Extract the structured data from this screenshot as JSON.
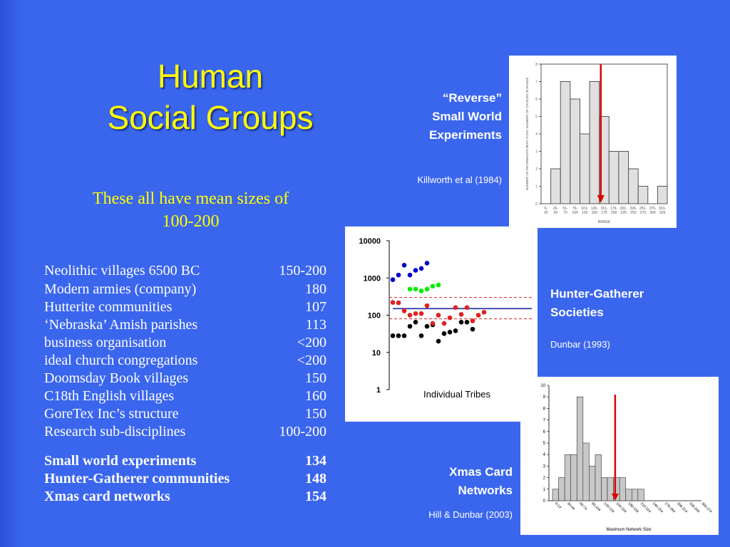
{
  "slide": {
    "title_line1": "Human",
    "title_line2": "Social Groups",
    "subtitle_line1": "These all have mean sizes of",
    "subtitle_line2": "100-200"
  },
  "groups": [
    {
      "name": "Neolithic villages 6500 BC",
      "size": "150-200"
    },
    {
      "name": "Modern armies (company)",
      "size": "180"
    },
    {
      "name": "Hutterite communities",
      "size": "107"
    },
    {
      "name": "‘Nebraska’ Amish parishes",
      "size": "113"
    },
    {
      "name": "business organisation",
      "size": "<200"
    },
    {
      "name": "ideal church congregations",
      "size": "<200"
    },
    {
      "name": "Doomsday Book villages",
      "size": "150"
    },
    {
      "name": "C18th English villages",
      "size": "160"
    },
    {
      "name": "GoreTex Inc’s structure",
      "size": "150"
    },
    {
      "name": "Research sub-disciplines",
      "size": "100-200"
    }
  ],
  "highlight_groups": [
    {
      "name": "Small world experiments",
      "size": "134"
    },
    {
      "name": "Hunter-Gatherer communities",
      "size": "148"
    },
    {
      "name": "Xmas card networks",
      "size": "154"
    }
  ],
  "labels": {
    "reverse_line1": "“Reverse”",
    "reverse_line2": "Small World",
    "reverse_line3": "Experiments",
    "reverse_cite": "Killworth et al (1984)",
    "hg_line1": "Hunter-Gatherer",
    "hg_line2": "Societies",
    "hg_cite": "Dunbar (1993)",
    "xmas_line1": "Xmas Card",
    "xmas_line2": "Networks",
    "xmas_cite": "Hill & Dunbar (2003)"
  },
  "colors": {
    "title": "#ffff00",
    "background": "#3a66ee",
    "arrow": "#dd0000"
  },
  "chart_data": [
    {
      "type": "bar",
      "categories": [
        "0-25",
        "26-50",
        "51-75",
        "76-100",
        "101-125",
        "126-150",
        "151-175",
        "176-200",
        "201-225",
        "226-250",
        "251-275",
        "276-300",
        "301-325"
      ],
      "category_labels": [
        "0-\n25",
        "26-\n50",
        "51-\n75",
        "76-\n100",
        "101-\n125",
        "126-\n150",
        "151-\n175",
        "176-\n200",
        "201-\n225",
        "226-\n250",
        "251-\n275",
        "276-\n300",
        "301-\n325"
      ],
      "values": [
        0,
        2,
        7,
        6,
        4,
        7,
        5,
        3,
        3,
        2,
        1,
        0,
        1
      ],
      "ylim": [
        0,
        8
      ],
      "yticks": [
        0,
        1,
        2,
        3,
        4,
        5,
        6,
        7,
        8
      ],
      "ylabel": "NUMBER OF INFORMANTS WITH TOTAL NUMBER OF CHOICES IN RANGE",
      "xlabel": "RANGE",
      "mean_marker_category": "151-175"
    },
    {
      "type": "scatter",
      "log_y": true,
      "yticks": [
        1,
        10,
        100,
        1000,
        10000
      ],
      "ylim": [
        1,
        10000
      ],
      "xlabel": "Individual Tribes",
      "mean": 150,
      "band": [
        80,
        300
      ],
      "series": [
        {
          "color": "#000000",
          "values": [
            28,
            28,
            28,
            50,
            65,
            28,
            50,
            55,
            20,
            32,
            35,
            38,
            65,
            65,
            42
          ]
        },
        {
          "color": "#e02020",
          "values": [
            220,
            215,
            130,
            100,
            110,
            110,
            180,
            60,
            100,
            60,
            85,
            160,
            105,
            160,
            70,
            100,
            120
          ]
        },
        {
          "color": "#00ee00",
          "values": [
            500,
            500,
            450,
            500,
            600,
            650
          ]
        },
        {
          "color": "#0000cc",
          "values": [
            900,
            1200,
            2200,
            1200,
            1600,
            1800,
            2500
          ]
        }
      ]
    },
    {
      "type": "bar",
      "categories": [
        "0-14",
        "15-29",
        "30-44",
        "45-59",
        "60-74",
        "75-89",
        "90-104",
        "105-119",
        "120-134",
        "135-149",
        "150-164",
        "165-179",
        "180-194",
        "195-209",
        "210-224",
        "225-239",
        "240-254",
        "255-269",
        "270-284",
        "285-299",
        "300-314",
        "315-329",
        "330-344",
        "345-359",
        "360-374"
      ],
      "values": [
        1,
        2,
        4,
        4,
        9,
        5,
        3,
        4,
        2,
        2,
        2,
        2,
        1,
        1,
        1,
        0,
        0,
        0,
        0,
        0,
        0,
        0,
        0,
        0,
        0
      ],
      "tick_labels": [
        "0-14",
        "30-44",
        "60-74",
        "90-104",
        "120-134",
        "150-164",
        "180-194",
        "210-224",
        "240-254",
        "270-284",
        "300-314",
        "330-344",
        "360-374"
      ],
      "ylim": [
        0,
        10
      ],
      "yticks": [
        0,
        1,
        2,
        3,
        4,
        5,
        6,
        7,
        8,
        9,
        10
      ],
      "xlabel": "Maximum Network Size",
      "mean_marker_value": 154
    }
  ]
}
